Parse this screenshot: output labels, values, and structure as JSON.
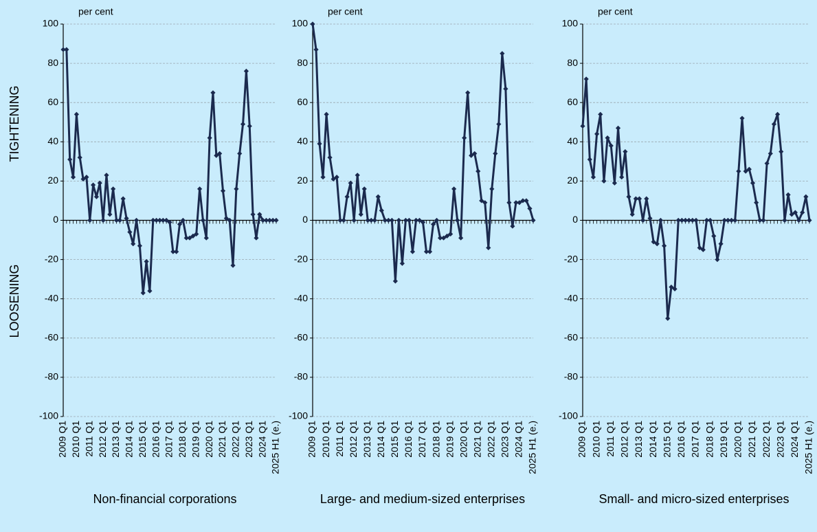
{
  "chart_data": [
    {
      "type": "line",
      "title": "Non-financial corporations",
      "unit_label": "per cent",
      "y_label_top": "TIGHTENING",
      "y_label_bottom": "LOOSENING",
      "categories": [
        "2009 Q1",
        null,
        null,
        null,
        "2010 Q1",
        null,
        null,
        null,
        "2011 Q1",
        null,
        null,
        null,
        "2012 Q1",
        null,
        null,
        null,
        "2013 Q1",
        null,
        null,
        null,
        "2014 Q1",
        null,
        null,
        null,
        "2015 Q1",
        null,
        null,
        null,
        "2016 Q1",
        null,
        null,
        null,
        "2017 Q1",
        null,
        null,
        null,
        "2018 Q1",
        null,
        null,
        null,
        "2019 Q1",
        null,
        null,
        null,
        "2020 Q1",
        null,
        null,
        null,
        "2021 Q1",
        null,
        null,
        null,
        "2022 Q1",
        null,
        null,
        null,
        "2023 Q1",
        null,
        null,
        null,
        "2024 Q1",
        null,
        null,
        null,
        "2025 H1 (e.)"
      ],
      "values": [
        87,
        87,
        31,
        22,
        54,
        32,
        21,
        22,
        0,
        18,
        12,
        19,
        0,
        23,
        3,
        16,
        0,
        0,
        11,
        1,
        -6,
        -12,
        0,
        -13,
        -37,
        -21,
        -36,
        0,
        0,
        0,
        0,
        0,
        -1,
        -16,
        -16,
        -2,
        0,
        -9,
        -9,
        -8,
        -7,
        16,
        0,
        -9,
        42,
        65,
        33,
        34,
        15,
        1,
        0,
        -23,
        16,
        34,
        49,
        76,
        48,
        3,
        -9,
        3,
        0,
        0,
        0,
        0,
        0
      ],
      "color": "#1b2a4e",
      "ylim": [
        -100,
        100
      ],
      "yticks": [
        -100,
        -80,
        -60,
        -40,
        -20,
        0,
        20,
        40,
        60,
        80,
        100
      ],
      "grid": true
    },
    {
      "type": "line",
      "title": "Large- and medium-sized enterprises",
      "unit_label": "per cent",
      "categories": [
        "2009 Q1",
        null,
        null,
        null,
        "2010 Q1",
        null,
        null,
        null,
        "2011 Q1",
        null,
        null,
        null,
        "2012 Q1",
        null,
        null,
        null,
        "2013 Q1",
        null,
        null,
        null,
        "2014 Q1",
        null,
        null,
        null,
        "2015 Q1",
        null,
        null,
        null,
        "2016 Q1",
        null,
        null,
        null,
        "2017 Q1",
        null,
        null,
        null,
        "2018 Q1",
        null,
        null,
        null,
        "2019 Q1",
        null,
        null,
        null,
        "2020 Q1",
        null,
        null,
        null,
        "2021 Q1",
        null,
        null,
        null,
        "2022 Q1",
        null,
        null,
        null,
        "2023 Q1",
        null,
        null,
        null,
        "2024 Q1",
        null,
        null,
        null,
        "2025 H1 (e.)"
      ],
      "values": [
        100,
        87,
        39,
        22,
        54,
        32,
        21,
        22,
        0,
        0,
        12,
        19,
        0,
        23,
        3,
        16,
        0,
        0,
        0,
        12,
        5,
        0,
        0,
        0,
        -31,
        0,
        -22,
        0,
        0,
        -16,
        0,
        0,
        -1,
        -16,
        -16,
        -2,
        0,
        -9,
        -9,
        -8,
        -7,
        16,
        0,
        -9,
        42,
        65,
        33,
        34,
        25,
        10,
        9,
        -14,
        16,
        34,
        49,
        85,
        67,
        9,
        -3,
        9,
        9,
        10,
        10,
        6,
        0
      ],
      "color": "#1b2a4e",
      "ylim": [
        -100,
        100
      ],
      "yticks": [
        -100,
        -80,
        -60,
        -40,
        -20,
        0,
        20,
        40,
        60,
        80,
        100
      ],
      "grid": true
    },
    {
      "type": "line",
      "title": "Small- and micro-sized enterprises",
      "unit_label": "per cent",
      "categories": [
        "2009 Q1",
        null,
        null,
        null,
        "2010 Q1",
        null,
        null,
        null,
        "2011 Q1",
        null,
        null,
        null,
        "2012 Q1",
        null,
        null,
        null,
        "2013 Q1",
        null,
        null,
        null,
        "2014 Q1",
        null,
        null,
        null,
        "2015 Q1",
        null,
        null,
        null,
        "2016 Q1",
        null,
        null,
        null,
        "2017 Q1",
        null,
        null,
        null,
        "2018 Q1",
        null,
        null,
        null,
        "2019 Q1",
        null,
        null,
        null,
        "2020 Q1",
        null,
        null,
        null,
        "2021 Q1",
        null,
        null,
        null,
        "2022 Q1",
        null,
        null,
        null,
        "2023 Q1",
        null,
        null,
        null,
        "2024 Q1",
        null,
        null,
        null,
        "2025 H1 (e.)"
      ],
      "values": [
        48,
        72,
        31,
        22,
        44,
        54,
        20,
        42,
        38,
        19,
        47,
        22,
        35,
        12,
        3,
        11,
        11,
        0,
        11,
        1,
        -11,
        -12,
        0,
        -13,
        -50,
        -34,
        -35,
        0,
        0,
        0,
        0,
        0,
        0,
        -14,
        -15,
        0,
        0,
        -8,
        -20,
        -12,
        0,
        0,
        0,
        0,
        25,
        52,
        25,
        26,
        19,
        9,
        0,
        0,
        29,
        34,
        49,
        54,
        35,
        0,
        13,
        3,
        4,
        0,
        4,
        12,
        0
      ],
      "color": "#1b2a4e",
      "ylim": [
        -100,
        100
      ],
      "yticks": [
        -100,
        -80,
        -60,
        -40,
        -20,
        0,
        20,
        40,
        60,
        80,
        100
      ],
      "grid": true
    }
  ]
}
